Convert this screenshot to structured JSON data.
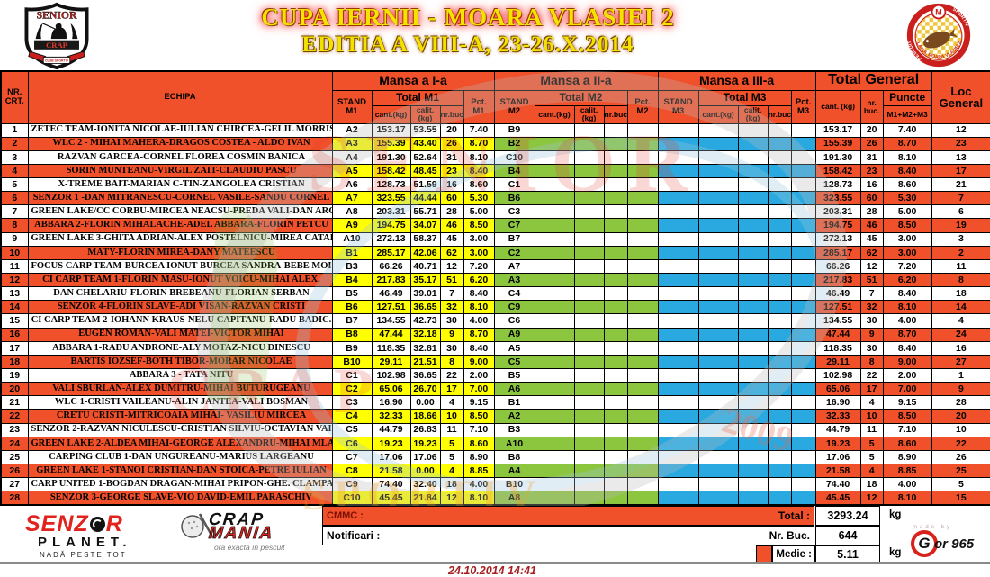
{
  "colors": {
    "orange": "#F0502A",
    "yellow": "#FFFF00",
    "green": "#8CC63F",
    "blue": "#29A9E0"
  },
  "header": {
    "title_line1": "CUPA IERNII - MOARA VLASIEI 2",
    "title_line2": "EDITIA  A VIII-A, 23-26.X.2014"
  },
  "logos": {
    "senior_crap": {
      "top": "SENIOR",
      "bottom": "CRAP",
      "ribbon": "CLUB SPORTIV"
    },
    "badge": {
      "ring_left": "PESCUIT",
      "ring_right": "SPORTIV",
      "arc": "LACUL MOARA VLASIEI 2",
      "medal": "M"
    },
    "senzor_planet": {
      "word1": "SENZ",
      "word2": "R",
      "line2": "PLANET.",
      "tagline": "NADĂ PESTE TOT"
    },
    "crap_mania": {
      "word1": "CRAP",
      "word2": "MANIA",
      "tagline": "ora exactă în pescuit"
    },
    "gor": {
      "made_by": "made by",
      "g": "G",
      "rest": "or 965"
    }
  },
  "watermark": {
    "text1": "SENIOR",
    "text2": "CRAP",
    "text3": "SPORTIV",
    "text4": "2009"
  },
  "table": {
    "headers": {
      "nr_line1": "NR.",
      "nr_line2": "CRT.",
      "echipa": "ECHIPA",
      "mansa1": "Mansa a I-a",
      "mansa2": "Mansa a II-a",
      "mansa3": "Mansa a III-a",
      "total_general": "Total General",
      "loc_line1": "Loc",
      "loc_line2": "General",
      "stand_label": "STAND",
      "m1": "M1",
      "m2": "M2",
      "m3": "M3",
      "total_m1": "Total M1",
      "total_m2": "Total M2",
      "total_m3": "Total M3",
      "pct": "Pct.",
      "cant": "cant.(kg)",
      "calit": "calit.(kg)",
      "nrbuc": "nr.buc.",
      "tg_cant": "cant. (kg)",
      "tg_nrbuc": "nr. buc.",
      "puncte": "Puncte",
      "m1m2m3": "M1+M2+M3"
    },
    "rows": [
      {
        "nr": "1",
        "team": "ZETEC TEAM-IONITA NICOLAE-IULIAN CHIRCEA-GELIL MORRIS",
        "m1": [
          "A2",
          "153.17",
          "53.55",
          "20",
          "7.40"
        ],
        "m2_stand": "B9",
        "tg": [
          "153.17",
          "20",
          "7.40",
          "12"
        ]
      },
      {
        "nr": "2",
        "team": "WLC 2 - MIHAI MAHERA-DRAGOS COSTEA - ALDO IVAN",
        "m1": [
          "A3",
          "155.39",
          "43.40",
          "26",
          "8.70"
        ],
        "m2_stand": "B2",
        "tg": [
          "155.39",
          "26",
          "8.70",
          "23"
        ]
      },
      {
        "nr": "3",
        "team": "RAZVAN GARCEA-CORNEL FLOREA COSMIN BANICA",
        "m1": [
          "A4",
          "191.30",
          "52.64",
          "31",
          "8.10"
        ],
        "m2_stand": "C10",
        "tg": [
          "191.30",
          "31",
          "8.10",
          "13"
        ]
      },
      {
        "nr": "4",
        "team": "SORIN MUNTEANU-VIRGIL ZAIT-CLAUDIU PASCU",
        "m1": [
          "A5",
          "158.42",
          "48.45",
          "23",
          "8.40"
        ],
        "m2_stand": "B4",
        "tg": [
          "158.42",
          "23",
          "8.40",
          "17"
        ]
      },
      {
        "nr": "5",
        "team": "X-TREME BAIT-MARIAN C-TIN-ZANGOLEA CRISTIAN",
        "m1": [
          "A6",
          "128.73",
          "51.59",
          "16",
          "8.60"
        ],
        "m2_stand": "C1",
        "tg": [
          "128.73",
          "16",
          "8.60",
          "21"
        ]
      },
      {
        "nr": "6",
        "team": "SENZOR 1 -DAN MITRANESCU-CORNEL VASILE-SANDU CORNEL",
        "m1": [
          "A7",
          "323.55",
          "44.44",
          "60",
          "5.30"
        ],
        "m2_stand": "B6",
        "tg": [
          "323.55",
          "60",
          "5.30",
          "7"
        ]
      },
      {
        "nr": "7",
        "team": "GREEN LAKE/CC CORBU-MIRCEA NEACSU-PREDA VALI-DAN ARG",
        "m1": [
          "A8",
          "203.31",
          "55.71",
          "28",
          "5.00"
        ],
        "m2_stand": "C3",
        "tg": [
          "203.31",
          "28",
          "5.00",
          "6"
        ]
      },
      {
        "nr": "8",
        "team": "ABBARA 2-FLORIN MIHALACHE-ADEL ABBARA-FLORIN PETCU",
        "m1": [
          "A9",
          "194.75",
          "34.07",
          "46",
          "8.50"
        ],
        "m2_stand": "C7",
        "tg": [
          "194.75",
          "46",
          "8.50",
          "19"
        ]
      },
      {
        "nr": "9",
        "team": "GREEN LAKE 3-GHITA ADRIAN-ALEX POSTELNICU-MIREA CATALI",
        "m1": [
          "A10",
          "272.13",
          "58.37",
          "45",
          "3.00"
        ],
        "m2_stand": "B7",
        "tg": [
          "272.13",
          "45",
          "3.00",
          "3"
        ]
      },
      {
        "nr": "10",
        "team": "MATY-FLORIN MIREA-DANY MATEESCU",
        "m1": [
          "B1",
          "285.17",
          "42.06",
          "62",
          "3.00"
        ],
        "m2_stand": "C2",
        "tg": [
          "285.17",
          "62",
          "3.00",
          "2"
        ]
      },
      {
        "nr": "11",
        "team": "FOCUS CARP TEAM-BURCEA IONUT-BURCEA SANDRA-BEBE MOIS",
        "m1": [
          "B3",
          "66.26",
          "40.71",
          "12",
          "7.20"
        ],
        "m2_stand": "A7",
        "tg": [
          "66.26",
          "12",
          "7.20",
          "11"
        ]
      },
      {
        "nr": "12",
        "team": "CI CARP TEAM 1-FLORIN MASU-IONUT VOICU-MIHAI ALEX.",
        "m1": [
          "B4",
          "217.83",
          "35.17",
          "51",
          "6.20"
        ],
        "m2_stand": "A3",
        "tg": [
          "217.83",
          "51",
          "6.20",
          "8"
        ]
      },
      {
        "nr": "13",
        "team": "DAN CHELARIU-FLORIN BREBEANU-FLORIAN SERBAN",
        "m1": [
          "B5",
          "46.49",
          "39.01",
          "7",
          "8.40"
        ],
        "m2_stand": "C4",
        "tg": [
          "46.49",
          "7",
          "8.40",
          "18"
        ]
      },
      {
        "nr": "14",
        "team": "SENZOR 4-FLORIN SLAVE-ADI VISAN-RAZVAN CRISTI",
        "m1": [
          "B6",
          "127.51",
          "36.65",
          "32",
          "8.10"
        ],
        "m2_stand": "C9",
        "tg": [
          "127.51",
          "32",
          "8.10",
          "14"
        ]
      },
      {
        "nr": "15",
        "team": "CI CARP TEAM 2-IOHANN KRAUS-NELU CAPITANU-RADU BADIC.",
        "m1": [
          "B7",
          "134.55",
          "42.73",
          "30",
          "4.00"
        ],
        "m2_stand": "C6",
        "tg": [
          "134.55",
          "30",
          "4.00",
          "4"
        ]
      },
      {
        "nr": "16",
        "team": "EUGEN ROMAN-VALI MATEI-VICTOR MIHAI",
        "m1": [
          "B8",
          "47.44",
          "32.18",
          "9",
          "8.70"
        ],
        "m2_stand": "A9",
        "tg": [
          "47.44",
          "9",
          "8.70",
          "24"
        ]
      },
      {
        "nr": "17",
        "team": "ABBARA 1-RADU ANDRONE-ALY MOTAZ-NICU DINESCU",
        "m1": [
          "B9",
          "118.35",
          "32.81",
          "30",
          "8.40"
        ],
        "m2_stand": "A5",
        "tg": [
          "118.35",
          "30",
          "8.40",
          "16"
        ]
      },
      {
        "nr": "18",
        "team": "BARTIS IOZSEF-BOTH TIBOR-MORAR NICOLAE",
        "m1": [
          "B10",
          "29.11",
          "21.51",
          "8",
          "9.00"
        ],
        "m2_stand": "C5",
        "tg": [
          "29.11",
          "8",
          "9.00",
          "27"
        ]
      },
      {
        "nr": "19",
        "team": "ABBARA 3 - TATA NITU",
        "m1": [
          "C1",
          "102.98",
          "36.65",
          "22",
          "2.00"
        ],
        "m2_stand": "B5",
        "tg": [
          "102.98",
          "22",
          "2.00",
          "1"
        ]
      },
      {
        "nr": "20",
        "team": "VALI SBURLAN-ALEX DUMITRU-MIHAI BUTURUGEANU",
        "m1": [
          "C2",
          "65.06",
          "26.70",
          "17",
          "7.00"
        ],
        "m2_stand": "A6",
        "tg": [
          "65.06",
          "17",
          "7.00",
          "9"
        ]
      },
      {
        "nr": "21",
        "team": "WLC 1-CRISTI VAILEANU-ALIN JANTEA-VALI BOSMAN",
        "m1": [
          "C3",
          "16.90",
          "0.00",
          "4",
          "9.15"
        ],
        "m2_stand": "B1",
        "tg": [
          "16.90",
          "4",
          "9.15",
          "28"
        ]
      },
      {
        "nr": "22",
        "team": "CRETU CRISTI-MITRICOAIA MIHAI- VASILIU MIRCEA",
        "m1": [
          "C4",
          "32.33",
          "18.66",
          "10",
          "8.50"
        ],
        "m2_stand": "A2",
        "tg": [
          "32.33",
          "10",
          "8.50",
          "20"
        ]
      },
      {
        "nr": "23",
        "team": "SENZOR 2-RAZVAN NICULESCU-CRISTIAN SILVIU-OCTAVIAN VAI",
        "m1": [
          "C5",
          "44.79",
          "26.83",
          "11",
          "7.10"
        ],
        "m2_stand": "B3",
        "tg": [
          "44.79",
          "11",
          "7.10",
          "10"
        ]
      },
      {
        "nr": "24",
        "team": "GREEN LAKE 2-ALDEA MIHAI-GEORGE ALEXANDRU-MIHAI MLAD",
        "m1": [
          "C6",
          "19.23",
          "19.23",
          "5",
          "8.60"
        ],
        "m2_stand": "A10",
        "tg": [
          "19.23",
          "5",
          "8.60",
          "22"
        ]
      },
      {
        "nr": "25",
        "team": "CARPING CLUB 1-DAN UNGUREANU-MARIUS LARGEANU",
        "m1": [
          "C7",
          "17.06",
          "17.06",
          "5",
          "8.90"
        ],
        "m2_stand": "B8",
        "tg": [
          "17.06",
          "5",
          "8.90",
          "26"
        ]
      },
      {
        "nr": "26",
        "team": "GREEN LAKE 1-STANOI CRISTIAN-DAN STOICA-PETRE IULIAN",
        "m1": [
          "C8",
          "21.58",
          "0.00",
          "4",
          "8.85"
        ],
        "m2_stand": "A4",
        "tg": [
          "21.58",
          "4",
          "8.85",
          "25"
        ]
      },
      {
        "nr": "27",
        "team": "CARP UNITED 1-BOGDAN DRAGAN-MIHAI PRIPON-GHE. CLAMPA",
        "m1": [
          "C9",
          "74.40",
          "32.40",
          "18",
          "4.00"
        ],
        "m2_stand": "B10",
        "tg": [
          "74.40",
          "18",
          "4.00",
          "5"
        ]
      },
      {
        "nr": "28",
        "team": "SENZOR 3-GEORGE SLAVE-VIO DAVID-EMIL PARASCHIV",
        "m1": [
          "C10",
          "45.45",
          "21.84",
          "12",
          "8.10"
        ],
        "m2_stand": "A8",
        "tg": [
          "45.45",
          "12",
          "8.10",
          "15"
        ]
      }
    ]
  },
  "footer": {
    "cmmc_label": "CMMC :",
    "total_label": "Total :",
    "total_value": "3293.24",
    "kg": "kg",
    "notificari_label": "Notificari :",
    "nrbuc_label": "Nr. Buc.",
    "nrbuc_value": "644",
    "medie_label": "Medie :",
    "medie_value": "5.11",
    "date": "24.10.2014 14:41"
  }
}
